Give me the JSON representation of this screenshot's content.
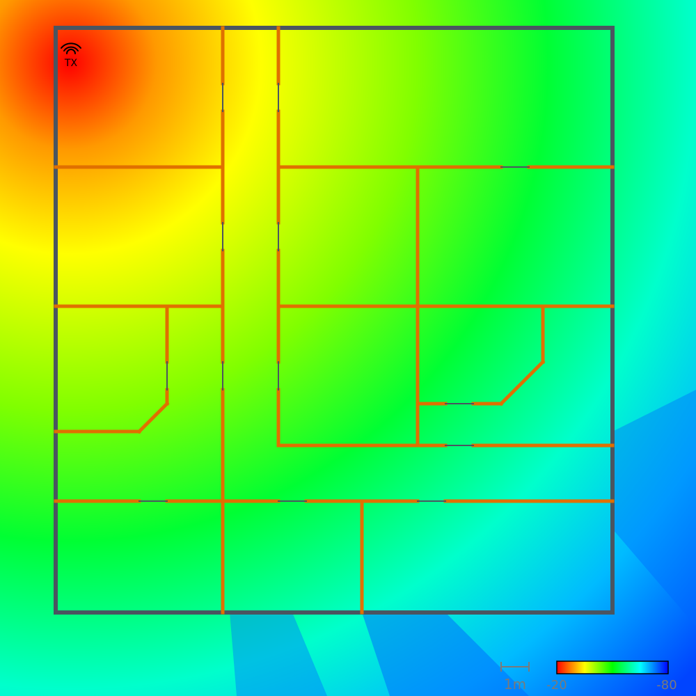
{
  "transmitter": {
    "label": "TX",
    "icon": "wifi-icon"
  },
  "scale_bar": {
    "label": "1m"
  },
  "colorbar": {
    "min_label": "-20",
    "max_label": "-80",
    "colors": [
      "#ff0000",
      "#ffff00",
      "#00ff00",
      "#00ffff",
      "#0000ff"
    ]
  },
  "colors": {
    "interior_wall": "#e07000",
    "exterior_wall": "#4a5560",
    "door": "#4a5560"
  }
}
